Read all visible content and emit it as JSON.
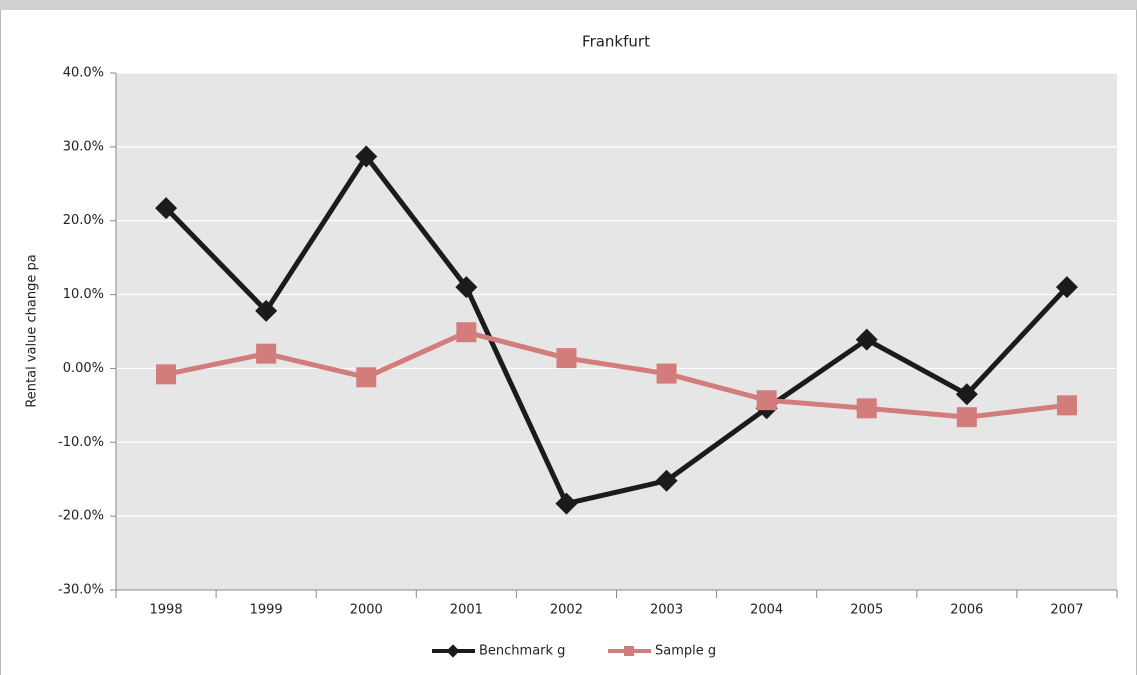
{
  "chart_data": {
    "type": "line",
    "title": "Frankfurt",
    "y_label": "Rental value change pa",
    "categories": [
      "1998",
      "1999",
      "2000",
      "2001",
      "2002",
      "2003",
      "2004",
      "2005",
      "2006",
      "2007"
    ],
    "series": [
      {
        "name": "Benchmark g",
        "color": "#1c1a1a",
        "marker": "diamond",
        "values": [
          21.7,
          7.8,
          28.7,
          11.0,
          -18.3,
          -15.2,
          -5.4,
          3.9,
          -3.5,
          11.0
        ]
      },
      {
        "name": "Sample g",
        "color": "#d27d7b",
        "marker": "square",
        "values": [
          -0.8,
          2.0,
          -1.2,
          4.9,
          1.4,
          -0.7,
          -4.3,
          -5.4,
          -6.6,
          -5.0
        ]
      }
    ],
    "ylim": [
      -30,
      40
    ],
    "yticks": [
      {
        "value": -30,
        "label": "-30.0%"
      },
      {
        "value": -20,
        "label": "-20.0%"
      },
      {
        "value": -10,
        "label": "-10.0%"
      },
      {
        "value": 0,
        "label": "0.00%"
      },
      {
        "value": 10,
        "label": "10.0%"
      },
      {
        "value": 20,
        "label": "20.0%"
      },
      {
        "value": 30,
        "label": "30.0%"
      },
      {
        "value": 40,
        "label": "40.0%"
      }
    ],
    "grid": true,
    "legend": "bottom"
  }
}
